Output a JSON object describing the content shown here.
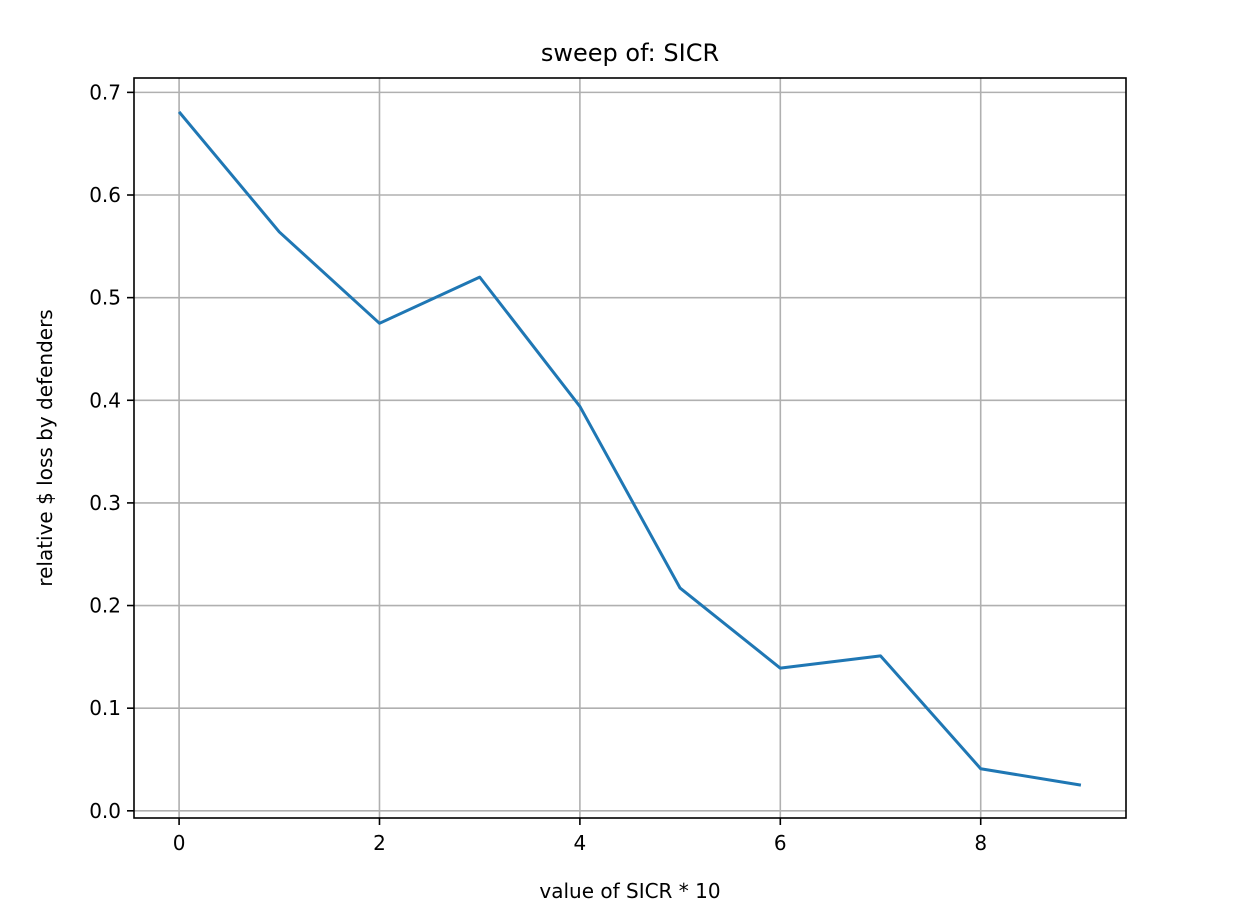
{
  "chart_data": {
    "type": "line",
    "title": "sweep of: SICR",
    "xlabel": "value of SICR * 10",
    "ylabel": "relative $ loss by defenders",
    "xlim": [
      -0.45,
      9.45
    ],
    "ylim": [
      -0.007,
      0.714
    ],
    "x_ticks": [
      0,
      2,
      4,
      6,
      8
    ],
    "x_tick_labels": [
      "0",
      "2",
      "4",
      "6",
      "8"
    ],
    "y_ticks": [
      0.0,
      0.1,
      0.2,
      0.3,
      0.4,
      0.5,
      0.6,
      0.7
    ],
    "y_tick_labels": [
      "0.0",
      "0.1",
      "0.2",
      "0.3",
      "0.4",
      "0.5",
      "0.6",
      "0.7"
    ],
    "grid": true,
    "series": [
      {
        "color": "#1f77b4",
        "x": [
          0,
          1,
          2,
          3,
          4,
          5,
          6,
          7,
          8,
          9
        ],
        "y": [
          0.681,
          0.564,
          0.475,
          0.52,
          0.394,
          0.217,
          0.139,
          0.151,
          0.041,
          0.025
        ]
      }
    ]
  }
}
